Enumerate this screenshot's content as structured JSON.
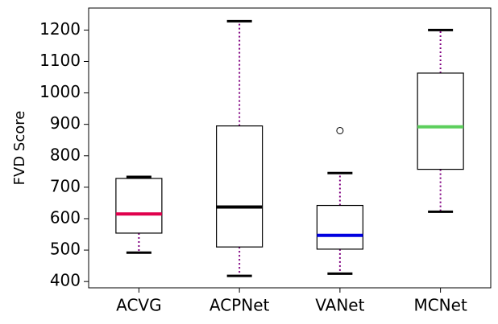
{
  "chart_data": {
    "type": "boxplot",
    "title": "",
    "xlabel": "",
    "ylabel": "FVD Score",
    "ylim": [
      380,
      1270
    ],
    "yticks": [
      400,
      500,
      600,
      700,
      800,
      900,
      1000,
      1100,
      1200
    ],
    "grid": false,
    "categories": [
      "ACVG",
      "ACPNet",
      "VANet",
      "MCNet"
    ],
    "boxes": [
      {
        "name": "ACVG",
        "whisker_low": 492,
        "q1": 554,
        "median": 615,
        "q3": 728,
        "whisker_high": 733,
        "outliers": [],
        "median_color": "#e0004d"
      },
      {
        "name": "ACPNet",
        "whisker_low": 418,
        "q1": 510,
        "median": 637,
        "q3": 895,
        "whisker_high": 1228,
        "outliers": [],
        "median_color": "#000000"
      },
      {
        "name": "VANet",
        "whisker_low": 425,
        "q1": 503,
        "median": 547,
        "q3": 642,
        "whisker_high": 745,
        "outliers": [
          880
        ],
        "median_color": "#0000e0"
      },
      {
        "name": "MCNet",
        "whisker_low": 622,
        "q1": 757,
        "median": 892,
        "q3": 1063,
        "whisker_high": 1200,
        "outliers": [],
        "median_color": "#5ccf5c"
      }
    ],
    "whisker_color": "#800080",
    "box_color": "#000000"
  }
}
